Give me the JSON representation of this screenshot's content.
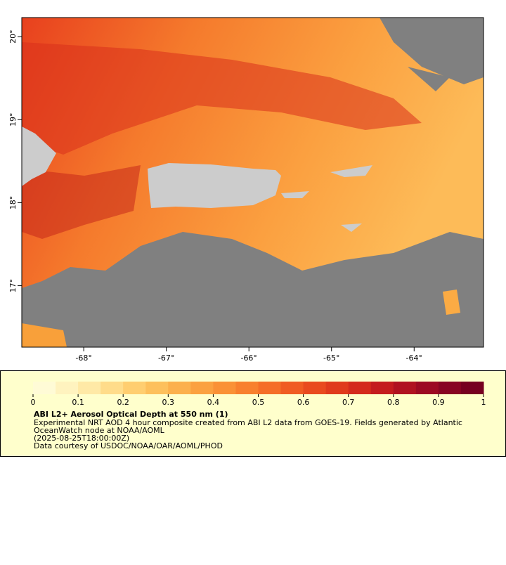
{
  "map": {
    "lonlim": [
      -68.75,
      -63.16
    ],
    "latlim": [
      16.26,
      20.23
    ],
    "lon_ticks": [
      {
        "value": -68,
        "label": "-68°"
      },
      {
        "value": -67,
        "label": "-67°"
      },
      {
        "value": -66,
        "label": "-66°"
      },
      {
        "value": -65,
        "label": "-65°"
      },
      {
        "value": -64,
        "label": "-64°"
      }
    ],
    "lat_ticks": [
      {
        "value": 20,
        "label": "20°"
      },
      {
        "value": 19,
        "label": "19°"
      },
      {
        "value": 18,
        "label": "18°"
      },
      {
        "value": 17,
        "label": "17°"
      }
    ]
  },
  "colorbar": {
    "lim": [
      0,
      1
    ],
    "ticks": [
      0,
      0.1,
      0.2,
      0.3,
      0.4,
      0.5,
      0.6,
      0.7,
      0.8,
      0.9,
      1
    ],
    "colors": [
      "#fffbd6",
      "#fff3bf",
      "#ffe9a6",
      "#ffdc8a",
      "#ffce70",
      "#fdc05c",
      "#fcb04c",
      "#fba140",
      "#fa9136",
      "#f8802e",
      "#f56e28",
      "#f05c22",
      "#e94a1e",
      "#e03a1c",
      "#d42a1c",
      "#c41c1e",
      "#b01220",
      "#9c0a22",
      "#880522",
      "#760020"
    ]
  },
  "legend": {
    "title": "ABI L2+ Aerosol Optical Depth at 550 nm (1)",
    "lines": [
      "Experimental NRT AOD 4 hour composite created from ABI L2 data from GOES-19. Fields generated by Atlantic",
      "OceanWatch node at NOAA/AOML",
      "(2025-08-25T18:00:00Z)",
      "Data courtesy of USDOC/NOAA/OAR/AOML/PHOD"
    ]
  }
}
